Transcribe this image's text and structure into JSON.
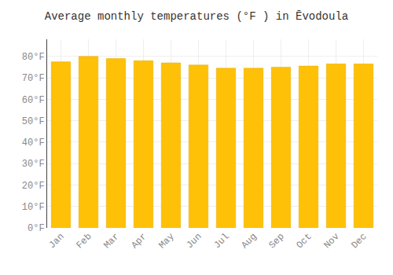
{
  "chart_data": {
    "type": "bar",
    "title": "Average monthly temperatures (°F ) in Ēvodoula",
    "categories": [
      "Jan",
      "Feb",
      "Mar",
      "Apr",
      "May",
      "Jun",
      "Jul",
      "Aug",
      "Sep",
      "Oct",
      "Nov",
      "Dec"
    ],
    "values": [
      77.5,
      80.0,
      79.0,
      78.0,
      77.0,
      76.0,
      74.5,
      74.5,
      75.0,
      75.5,
      76.5,
      76.5
    ],
    "color": "#FFC107",
    "ylim": [
      0,
      88
    ],
    "yticks": [
      {
        "value": 0,
        "label": "0°F"
      },
      {
        "value": 10,
        "label": "10°F"
      },
      {
        "value": 20,
        "label": "20°F"
      },
      {
        "value": 30,
        "label": "30°F"
      },
      {
        "value": 40,
        "label": "40°F"
      },
      {
        "value": 50,
        "label": "50°F"
      },
      {
        "value": 60,
        "label": "60°F"
      },
      {
        "value": 70,
        "label": "70°F"
      },
      {
        "value": 80,
        "label": "80°F"
      }
    ],
    "grid": true
  }
}
